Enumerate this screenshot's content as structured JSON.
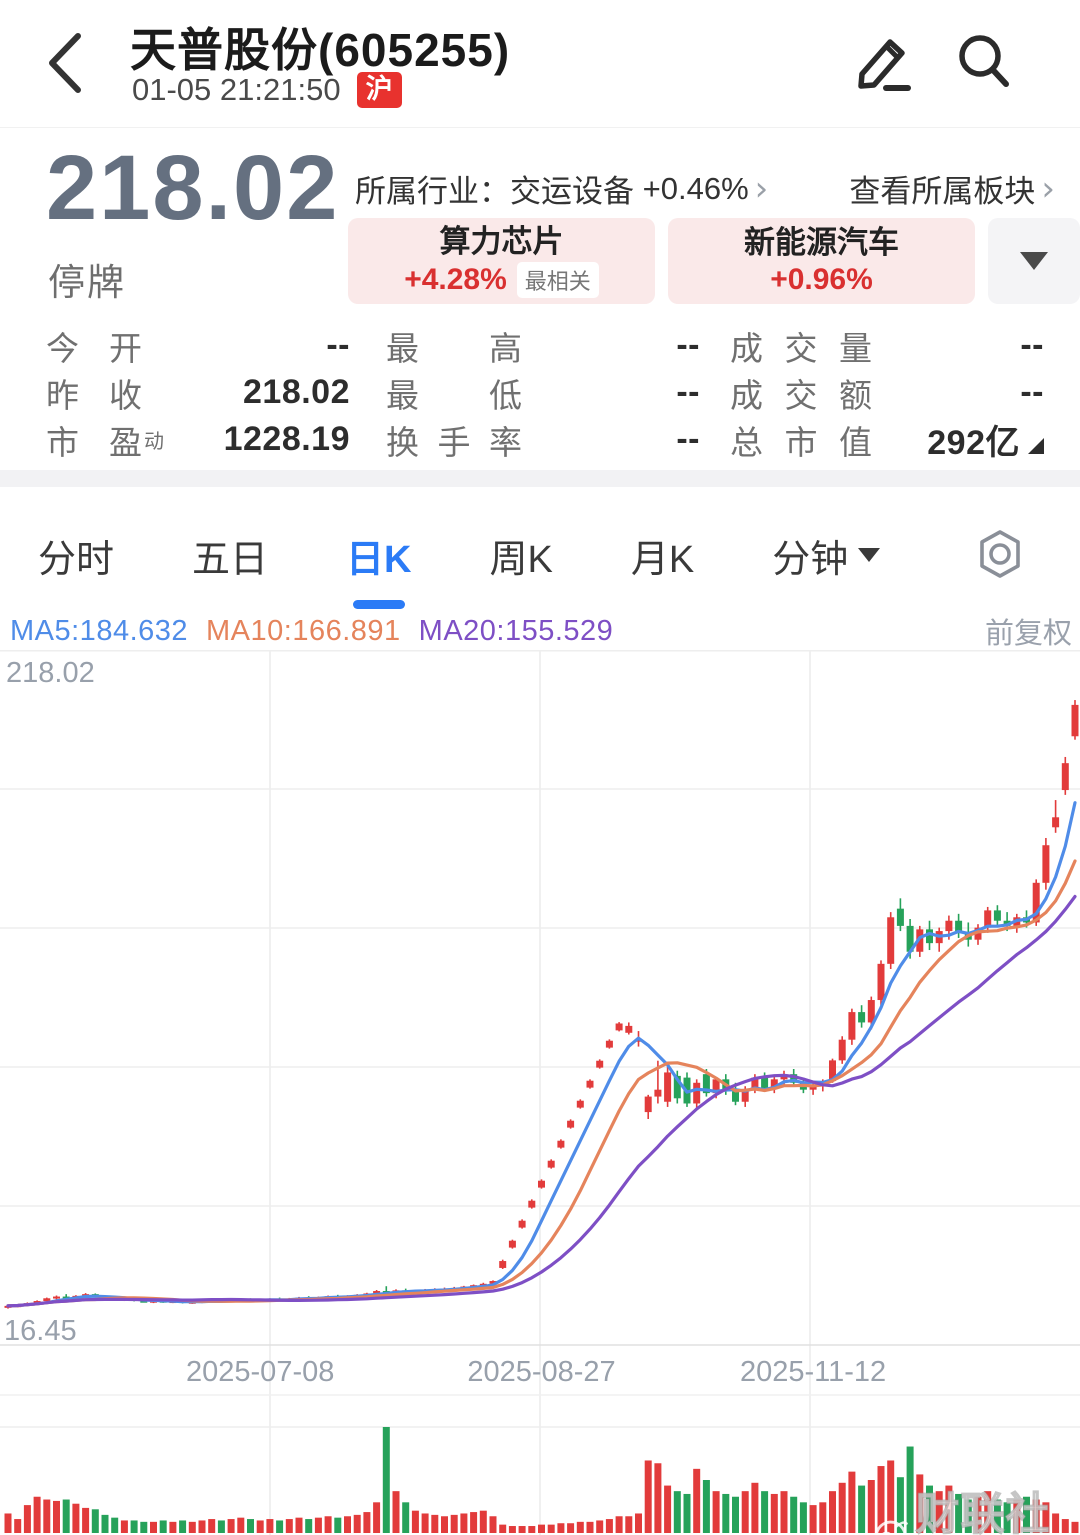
{
  "header": {
    "back_icon": "chevron-left",
    "title": "天普股份(605255)",
    "timestamp": "01-05 21:21:50",
    "market_badge": "沪",
    "edit_icon": "pencil",
    "search_icon": "magnifier"
  },
  "quote": {
    "price": "218.02",
    "status": "停牌",
    "industry_label": "所属行业：",
    "industry_name": "交运设备",
    "industry_change": "+0.46%",
    "chevron": "›",
    "view_sector_label": "查看所属板块",
    "tags": [
      {
        "name": "算力芯片",
        "change": "+4.28%",
        "badge": "最相关"
      },
      {
        "name": "新能源汽车",
        "change": "+0.96%",
        "badge": ""
      }
    ]
  },
  "stats": {
    "rows": [
      [
        {
          "label": "今开",
          "value": "--"
        },
        {
          "label": "最高",
          "value": "--"
        },
        {
          "label": "成交量",
          "value": "--"
        }
      ],
      [
        {
          "label": "昨收",
          "value": "218.02"
        },
        {
          "label": "最低",
          "value": "--"
        },
        {
          "label": "成交额",
          "value": "--"
        }
      ],
      [
        {
          "label": "市盈",
          "sup": "动",
          "value": "1228.19"
        },
        {
          "label": "换手率",
          "value": "--"
        },
        {
          "label": "总市值",
          "value": "292亿",
          "marker": true
        }
      ]
    ]
  },
  "tabs": [
    {
      "label": "分时",
      "active": false
    },
    {
      "label": "五日",
      "active": false
    },
    {
      "label": "日K",
      "active": true
    },
    {
      "label": "周K",
      "active": false
    },
    {
      "label": "月K",
      "active": false
    },
    {
      "label": "分钟",
      "active": false,
      "dropdown": true
    }
  ],
  "chart_data": {
    "type": "candlestick",
    "adjust_label": "前复权",
    "y_max_label": "218.02",
    "y_min_label": "16.45",
    "ylim": [
      16.45,
      218.02
    ],
    "grid": true,
    "up_color": "#e23b3b",
    "down_color": "#26a25a",
    "ma_series": [
      {
        "label": "MA5:184.632",
        "period": 5,
        "color": "#4f8ce8"
      },
      {
        "label": "MA10:166.891",
        "period": 10,
        "color": "#e5845c"
      },
      {
        "label": "MA20:155.529",
        "period": 20,
        "color": "#7e4fc5"
      }
    ],
    "x_ticks": [
      {
        "label": "2025-07-08",
        "index": 26
      },
      {
        "label": "2025-08-27",
        "index": 55
      },
      {
        "label": "2025-11-12",
        "index": 83
      }
    ],
    "candles": [
      [
        27.5,
        28.0,
        27.0,
        27.8,
        14
      ],
      [
        27.8,
        28.3,
        27.4,
        28.0,
        10
      ],
      [
        28.0,
        28.8,
        27.7,
        28.6,
        20
      ],
      [
        28.6,
        29.4,
        28.3,
        29.2,
        26
      ],
      [
        29.2,
        30.2,
        29.0,
        30.0,
        24
      ],
      [
        30.0,
        30.8,
        29.6,
        30.5,
        23
      ],
      [
        30.5,
        31.2,
        29.9,
        30.2,
        24
      ],
      [
        30.2,
        30.9,
        29.8,
        30.7,
        21
      ],
      [
        30.7,
        31.5,
        30.3,
        31.2,
        18
      ],
      [
        31.2,
        31.4,
        30.2,
        30.4,
        17
      ],
      [
        30.4,
        30.8,
        29.7,
        29.9,
        13
      ],
      [
        29.9,
        30.3,
        29.3,
        29.5,
        11
      ],
      [
        29.5,
        30.0,
        29.2,
        29.8,
        9
      ],
      [
        29.8,
        30.1,
        29.1,
        29.3,
        9
      ],
      [
        29.3,
        29.7,
        28.8,
        29.0,
        8
      ],
      [
        29.0,
        29.5,
        28.6,
        29.3,
        8
      ],
      [
        29.3,
        29.6,
        28.7,
        28.9,
        9
      ],
      [
        28.9,
        29.4,
        28.6,
        29.2,
        8
      ],
      [
        29.2,
        29.5,
        28.5,
        28.7,
        9
      ],
      [
        28.7,
        29.2,
        28.4,
        29.0,
        8
      ],
      [
        29.0,
        29.4,
        28.6,
        29.2,
        9
      ],
      [
        29.2,
        29.7,
        28.9,
        29.5,
        10
      ],
      [
        29.5,
        29.8,
        28.9,
        29.1,
        9
      ],
      [
        29.1,
        29.6,
        28.8,
        29.4,
        10
      ],
      [
        29.4,
        29.9,
        29.1,
        29.7,
        11
      ],
      [
        29.7,
        30.0,
        29.0,
        29.2,
        10
      ],
      [
        29.2,
        29.7,
        28.9,
        29.5,
        9
      ],
      [
        29.5,
        30.0,
        29.2,
        29.8,
        10
      ],
      [
        29.8,
        30.2,
        29.4,
        29.6,
        9
      ],
      [
        29.6,
        30.1,
        29.3,
        29.9,
        10
      ],
      [
        29.9,
        30.4,
        29.6,
        30.2,
        11
      ],
      [
        30.2,
        30.6,
        29.8,
        30.0,
        10
      ],
      [
        30.0,
        30.5,
        29.7,
        30.3,
        11
      ],
      [
        30.3,
        30.8,
        30.0,
        30.6,
        12
      ],
      [
        30.6,
        31.0,
        30.2,
        30.4,
        11
      ],
      [
        30.4,
        30.9,
        30.1,
        30.7,
        12
      ],
      [
        30.7,
        31.2,
        30.4,
        31.0,
        13
      ],
      [
        31.0,
        31.6,
        30.7,
        31.4,
        15
      ],
      [
        31.4,
        32.4,
        31.1,
        32.1,
        22
      ],
      [
        32.1,
        33.5,
        31.5,
        31.8,
        76
      ],
      [
        31.8,
        32.6,
        31.4,
        32.3,
        30
      ],
      [
        32.3,
        32.8,
        31.7,
        32.0,
        22
      ],
      [
        32.0,
        32.5,
        31.6,
        32.2,
        16
      ],
      [
        32.2,
        32.7,
        31.8,
        32.4,
        14
      ],
      [
        32.4,
        32.9,
        32.0,
        32.6,
        13
      ],
      [
        32.6,
        33.1,
        32.2,
        32.8,
        12
      ],
      [
        32.8,
        33.3,
        32.4,
        33.0,
        13
      ],
      [
        33.0,
        33.6,
        32.6,
        33.4,
        14
      ],
      [
        33.4,
        34.0,
        33.0,
        33.8,
        15
      ],
      [
        33.8,
        34.5,
        33.4,
        34.2,
        16
      ],
      [
        34.2,
        35.2,
        34.0,
        35.0,
        12
      ],
      [
        38.8,
        41.2,
        38.5,
        40.8,
        6
      ],
      [
        44.7,
        47.0,
        44.4,
        46.7,
        5
      ],
      [
        50.5,
        52.9,
        50.2,
        52.5,
        5
      ],
      [
        56.3,
        58.7,
        56.0,
        58.3,
        5
      ],
      [
        62.1,
        64.5,
        61.8,
        64.1,
        6
      ],
      [
        67.9,
        70.3,
        67.6,
        69.9,
        6
      ],
      [
        73.7,
        76.1,
        73.4,
        75.7,
        7
      ],
      [
        79.5,
        81.9,
        79.2,
        81.5,
        7
      ],
      [
        85.3,
        87.7,
        85.0,
        87.3,
        8
      ],
      [
        91.1,
        93.5,
        90.8,
        93.1,
        8
      ],
      [
        96.9,
        99.3,
        96.6,
        98.9,
        9
      ],
      [
        102.7,
        105.1,
        102.4,
        104.7,
        10
      ],
      [
        107.7,
        110.1,
        107.4,
        109.7,
        12
      ],
      [
        107.0,
        110.0,
        106.5,
        109.0,
        12
      ],
      [
        104.5,
        107.5,
        103.0,
        105.0,
        14
      ],
      [
        84.0,
        89.0,
        82.0,
        88.5,
        52
      ],
      [
        88.5,
        98.9,
        86.5,
        90.5,
        50
      ],
      [
        87.0,
        98.0,
        85.5,
        95.5,
        34
      ],
      [
        94.5,
        96.0,
        86.5,
        88.0,
        30
      ],
      [
        94.0,
        95.5,
        85.5,
        86.5,
        28
      ],
      [
        86.5,
        93.5,
        85.0,
        92.5,
        46
      ],
      [
        95.0,
        96.5,
        88.5,
        89.5,
        38
      ],
      [
        89.5,
        94.0,
        88.0,
        93.5,
        30
      ],
      [
        93.5,
        95.0,
        89.0,
        90.0,
        28
      ],
      [
        90.0,
        92.5,
        86.0,
        87.0,
        26
      ],
      [
        87.0,
        91.5,
        85.5,
        90.5,
        30
      ],
      [
        90.5,
        95.0,
        89.5,
        94.0,
        36
      ],
      [
        94.0,
        95.5,
        90.0,
        91.0,
        30
      ],
      [
        91.0,
        94.5,
        89.5,
        93.5,
        28
      ],
      [
        93.5,
        96.0,
        92.0,
        95.0,
        30
      ],
      [
        95.0,
        96.5,
        91.5,
        92.5,
        26
      ],
      [
        92.5,
        94.0,
        89.5,
        90.5,
        22
      ],
      [
        90.5,
        93.0,
        89.0,
        92.0,
        20
      ],
      [
        92.0,
        93.5,
        90.0,
        93.0,
        22
      ],
      [
        93.0,
        99.5,
        92.5,
        99.0,
        30
      ],
      [
        99.0,
        106.0,
        98.0,
        105.0,
        36
      ],
      [
        105.0,
        114.0,
        103.5,
        113.0,
        44
      ],
      [
        113.0,
        115.0,
        108.5,
        110.0,
        34
      ],
      [
        110.0,
        117.5,
        108.0,
        116.5,
        38
      ],
      [
        116.5,
        128.0,
        115.0,
        127.0,
        48
      ],
      [
        127.0,
        142.0,
        125.5,
        140.5,
        52
      ],
      [
        143.0,
        146.0,
        136.5,
        138.0,
        40
      ],
      [
        138.0,
        140.0,
        128.5,
        130.5,
        62
      ],
      [
        130.5,
        138.0,
        129.0,
        137.0,
        42
      ],
      [
        137.0,
        139.5,
        131.0,
        133.0,
        34
      ],
      [
        133.0,
        137.5,
        130.5,
        136.5,
        30
      ],
      [
        136.5,
        141.0,
        134.0,
        139.5,
        34
      ],
      [
        139.5,
        141.5,
        134.5,
        136.0,
        28
      ],
      [
        136.0,
        139.0,
        132.0,
        134.0,
        24
      ],
      [
        134.0,
        138.5,
        132.5,
        137.5,
        26
      ],
      [
        137.5,
        143.5,
        136.0,
        142.5,
        30
      ],
      [
        142.5,
        144.0,
        138.0,
        139.5,
        24
      ],
      [
        139.5,
        142.0,
        136.5,
        138.0,
        22
      ],
      [
        138.0,
        141.5,
        136.0,
        140.5,
        24
      ],
      [
        140.5,
        142.5,
        137.5,
        139.0,
        26
      ],
      [
        139.0,
        151.5,
        138.0,
        150.5,
        24
      ],
      [
        150.5,
        163.5,
        148.5,
        161.4,
        22
      ],
      [
        166.6,
        174.5,
        165.0,
        169.5,
        14
      ],
      [
        177.4,
        187.0,
        176.0,
        185.2,
        10
      ],
      [
        193.0,
        203.5,
        192.0,
        202.1,
        8
      ]
    ]
  },
  "watermark": {
    "text": "财联社APP"
  }
}
